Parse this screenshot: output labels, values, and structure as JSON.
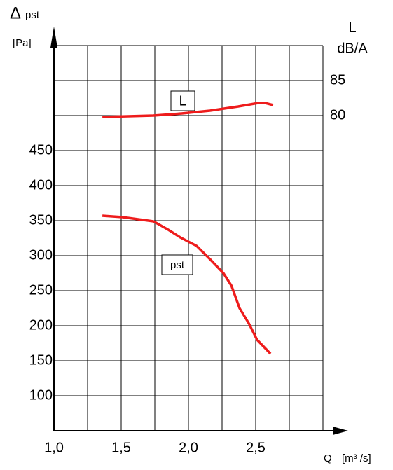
{
  "chart_data": {
    "type": "line",
    "y_symbol": "Δ",
    "y_label": "pst",
    "y_unit": "[Pa]",
    "y2_label": "L",
    "y2_unit": "dB/A",
    "x_label": "Q",
    "x_unit": "[m³ /s]",
    "xlim": [
      1.0,
      3.0
    ],
    "xticks": [
      {
        "value": 1.0,
        "label": "1,0"
      },
      {
        "value": 1.5,
        "label": "1,5"
      },
      {
        "value": 2.0,
        "label": "2,0"
      },
      {
        "value": 2.5,
        "label": "2,5"
      }
    ],
    "xgrid": [
      1.0,
      1.25,
      1.5,
      1.75,
      2.0,
      2.25,
      2.5,
      2.75,
      3.0
    ],
    "ylim": [
      50,
      600
    ],
    "yticks": [
      100,
      150,
      200,
      250,
      300,
      350,
      400,
      450
    ],
    "ygrid": [
      50,
      100,
      150,
      200,
      250,
      300,
      350,
      400,
      450,
      500,
      550,
      600
    ],
    "y2lim": [
      35,
      90
    ],
    "y2ticks": [
      80,
      85
    ],
    "grid": true,
    "series": [
      {
        "name": "pst",
        "color": "#ee1c1c",
        "axis": "y",
        "x": [
          1.36,
          1.51,
          1.74,
          1.85,
          1.94,
          2.06,
          2.16,
          2.26,
          2.32,
          2.38,
          2.45,
          2.51,
          2.61
        ],
        "values": [
          357,
          355,
          349,
          337,
          326,
          314,
          295,
          275,
          257,
          225,
          203,
          180,
          160
        ]
      },
      {
        "name": "L",
        "color": "#ee1c1c",
        "axis": "y2",
        "x": [
          1.36,
          1.74,
          1.95,
          2.16,
          2.37,
          2.52,
          2.57,
          2.63
        ],
        "values": [
          79.8,
          80.0,
          80.3,
          80.7,
          81.3,
          81.8,
          81.8,
          81.5
        ]
      }
    ]
  }
}
